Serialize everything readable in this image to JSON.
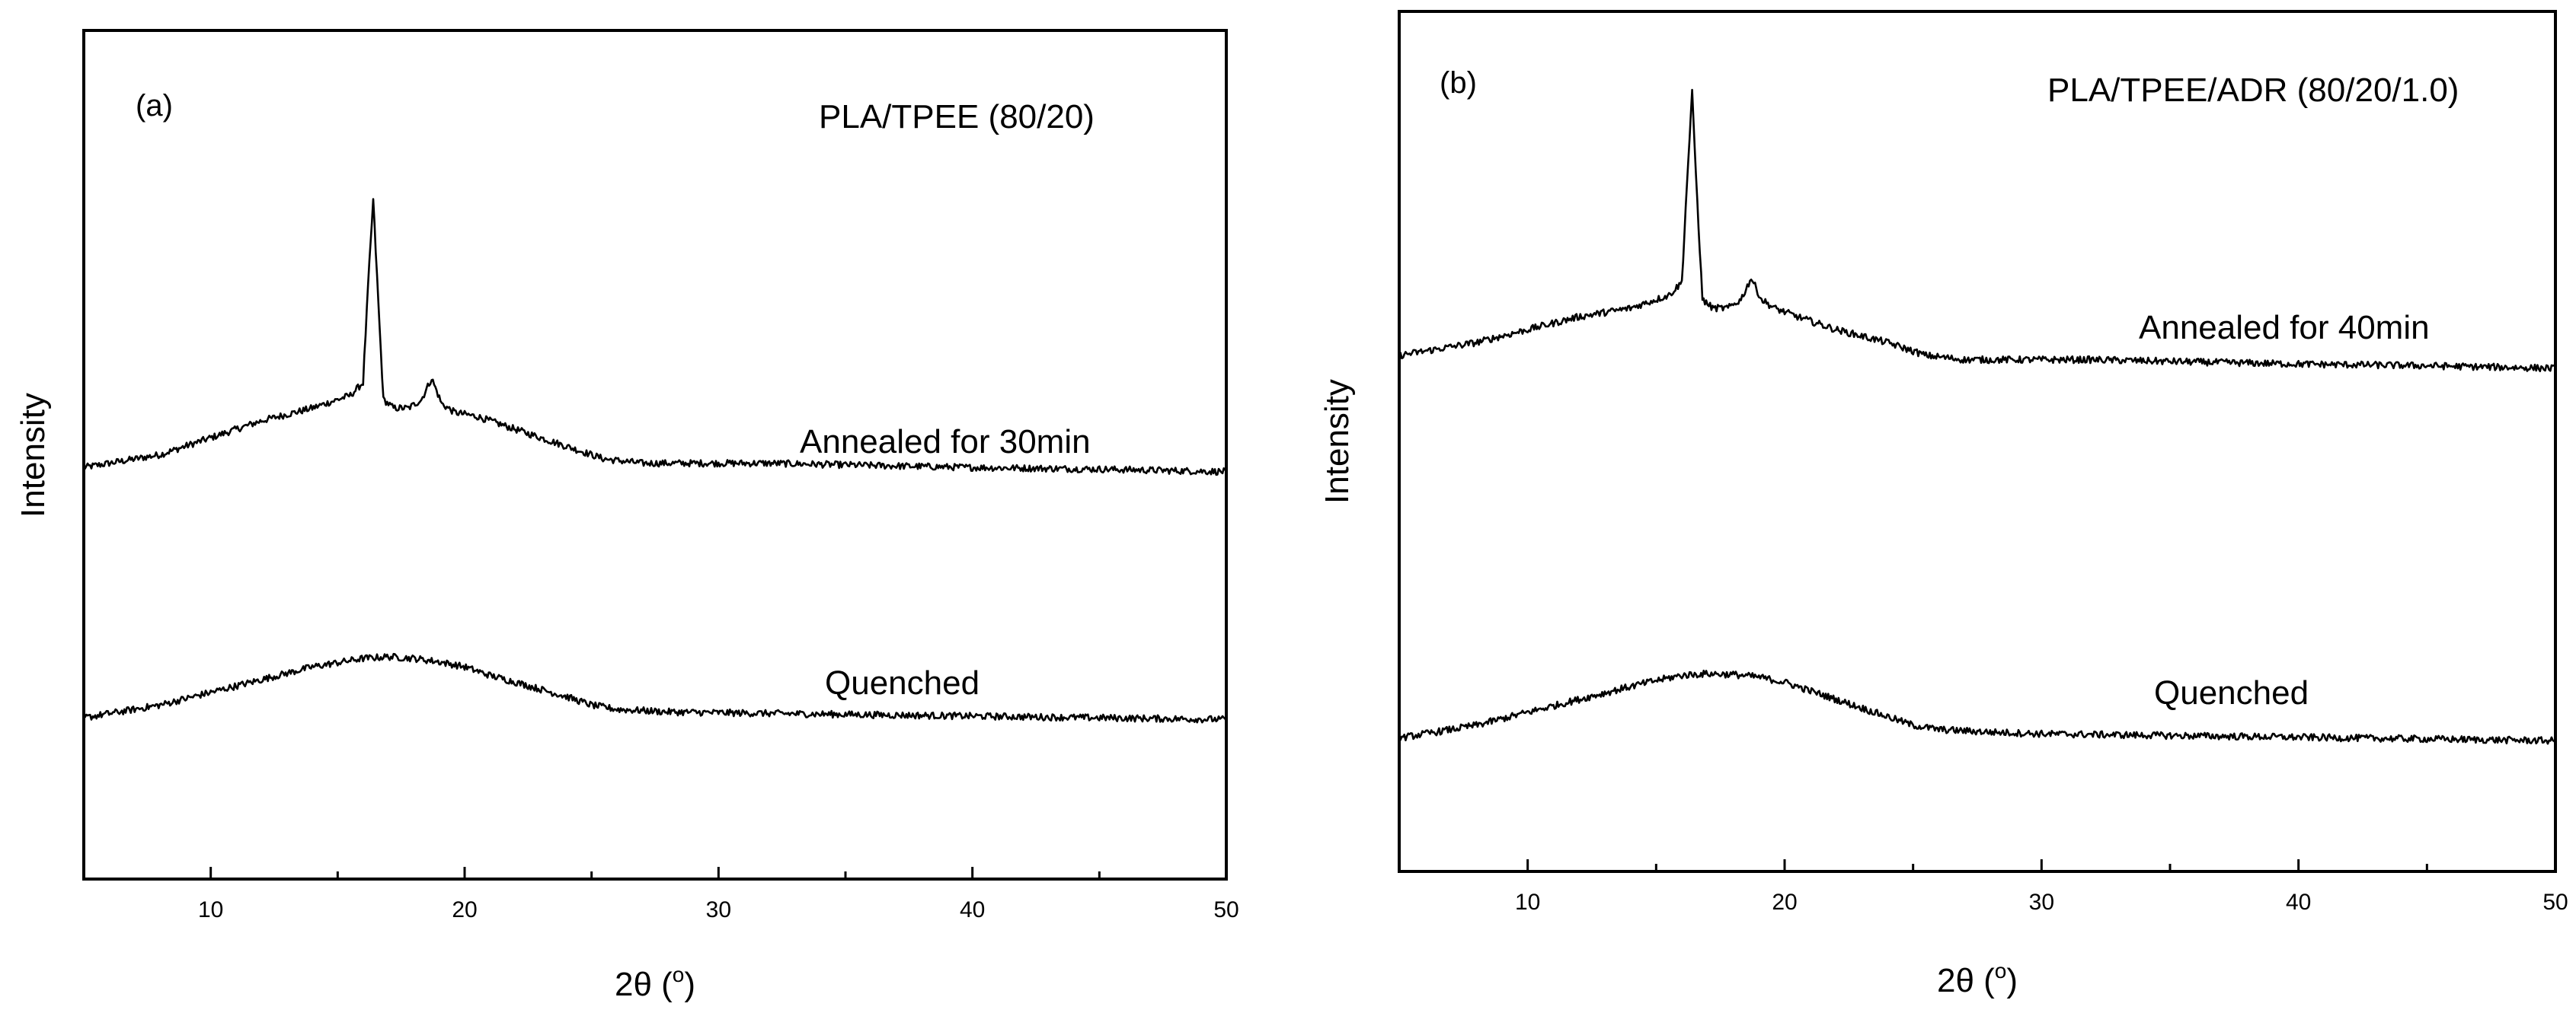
{
  "chart_data": [
    {
      "type": "line",
      "panel_label": "(a)",
      "title": "PLA/TPEE (80/20)",
      "xlabel_main": "2θ (",
      "xlabel_sup": "o",
      "xlabel_end": ")",
      "ylabel": "Intensity",
      "xlim": [
        5,
        50
      ],
      "ylim": [
        0,
        1
      ],
      "grid": false,
      "xticks": [
        10,
        20,
        30,
        40,
        50
      ],
      "xtick_labels": [
        "10",
        "20",
        "30",
        "40",
        "50"
      ],
      "series": [
        {
          "name": "Annealed for 30min",
          "x": [
            5,
            8,
            10,
            12,
            14,
            15,
            15.5,
            16,
            16.2,
            16.4,
            16.6,
            16.8,
            17.2,
            17.8,
            18.3,
            18.7,
            19.1,
            19.6,
            20.5,
            22,
            24,
            25.5,
            27,
            29,
            32,
            35,
            40,
            45,
            50
          ],
          "y": [
            0.485,
            0.5,
            0.52,
            0.54,
            0.555,
            0.565,
            0.57,
            0.585,
            0.7,
            0.8,
            0.68,
            0.565,
            0.555,
            0.555,
            0.565,
            0.59,
            0.56,
            0.55,
            0.545,
            0.53,
            0.51,
            0.495,
            0.49,
            0.49,
            0.49,
            0.488,
            0.485,
            0.483,
            0.48
          ]
        },
        {
          "name": "Quenched",
          "x": [
            5,
            8,
            10,
            12,
            14,
            15,
            16,
            17,
            18,
            19,
            20,
            21,
            22,
            24,
            25,
            26,
            28,
            30,
            35,
            40,
            45,
            50
          ],
          "y": [
            0.19,
            0.205,
            0.22,
            0.235,
            0.25,
            0.255,
            0.26,
            0.262,
            0.26,
            0.256,
            0.25,
            0.24,
            0.232,
            0.215,
            0.205,
            0.2,
            0.197,
            0.196,
            0.194,
            0.192,
            0.19,
            0.188
          ]
        }
      ]
    },
    {
      "type": "line",
      "panel_label": "(b)",
      "title": "PLA/TPEE/ADR (80/20/1.0)",
      "xlabel_main": "2θ (",
      "xlabel_sup": "o",
      "xlabel_end": ")",
      "ylabel": "Intensity",
      "xlim": [
        5,
        50
      ],
      "ylim": [
        0,
        1
      ],
      "grid": false,
      "xticks": [
        10,
        20,
        30,
        40,
        50
      ],
      "xtick_labels": [
        "10",
        "20",
        "30",
        "40",
        "50"
      ],
      "series": [
        {
          "name": "Annealed for 40min",
          "x": [
            5,
            8,
            10,
            12,
            14,
            15,
            15.5,
            16,
            16.2,
            16.4,
            16.6,
            16.8,
            17.2,
            17.8,
            18.3,
            18.7,
            19.1,
            19.6,
            20.5,
            22,
            24,
            25.5,
            27,
            29,
            32,
            35,
            40,
            45,
            50
          ],
          "y": [
            0.6,
            0.615,
            0.63,
            0.645,
            0.655,
            0.665,
            0.67,
            0.685,
            0.8,
            0.905,
            0.78,
            0.665,
            0.655,
            0.655,
            0.665,
            0.69,
            0.665,
            0.655,
            0.645,
            0.63,
            0.615,
            0.6,
            0.595,
            0.595,
            0.595,
            0.593,
            0.59,
            0.588,
            0.585
          ]
        },
        {
          "name": "Quenched",
          "x": [
            5,
            8,
            10,
            12,
            14,
            15,
            16,
            17,
            18,
            19,
            20,
            21,
            22,
            24,
            25,
            26,
            28,
            30,
            35,
            40,
            45,
            50
          ],
          "y": [
            0.155,
            0.17,
            0.185,
            0.2,
            0.215,
            0.222,
            0.228,
            0.23,
            0.229,
            0.226,
            0.22,
            0.21,
            0.2,
            0.18,
            0.17,
            0.165,
            0.162,
            0.16,
            0.158,
            0.156,
            0.154,
            0.152
          ]
        }
      ]
    }
  ]
}
